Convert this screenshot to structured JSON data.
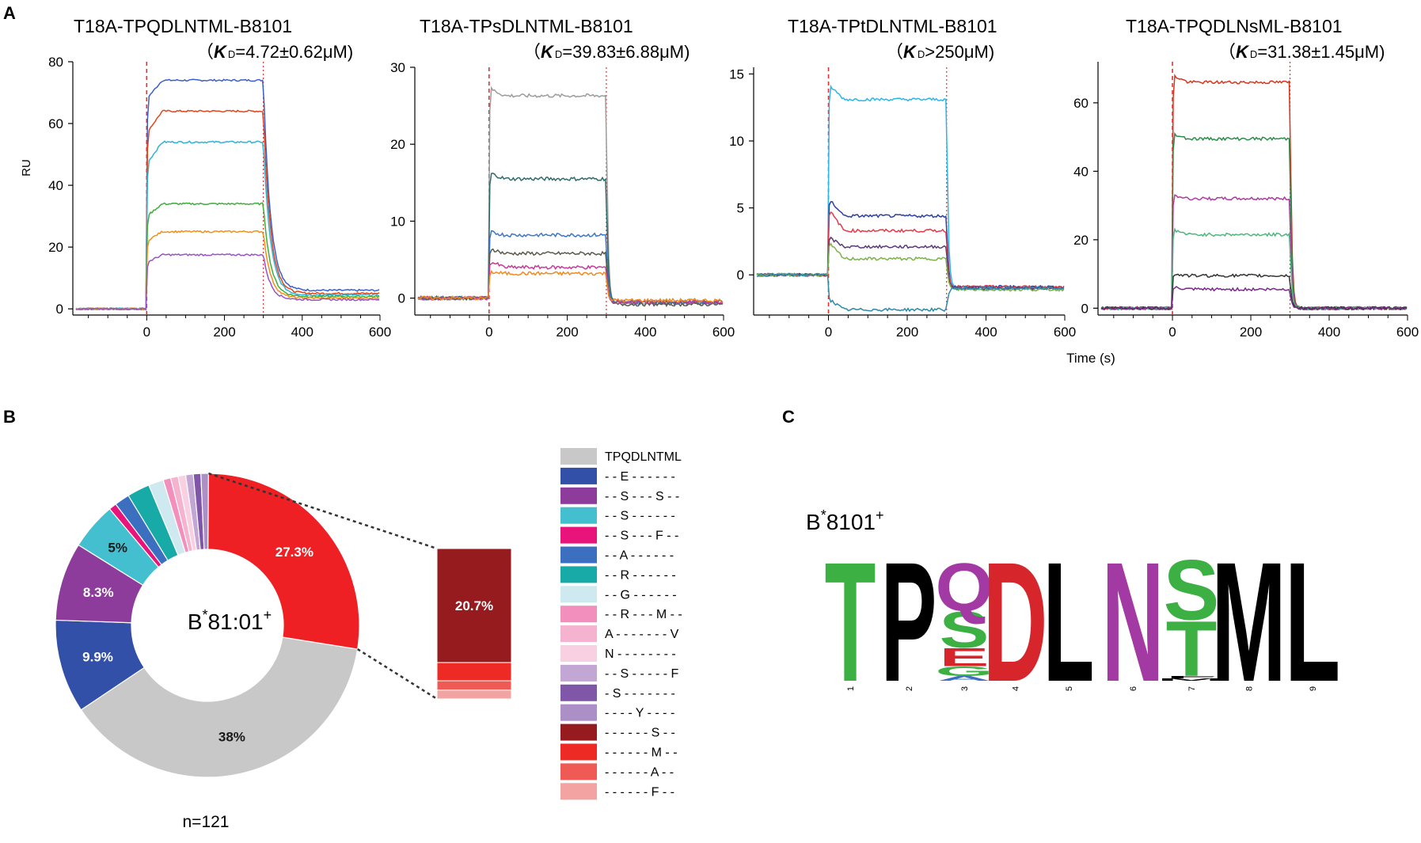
{
  "panels": {
    "A": "A",
    "B": "B",
    "C": "C"
  },
  "spr": {
    "ylabel": "RU",
    "xlabel": "Time (s)",
    "kd_symbol": "K",
    "kd_sub": "D",
    "plots": [
      {
        "title": "T18A-TPQDLNTML-B8101",
        "kd": {
          "open": "（",
          "rest": "=4.72±0.62μM)"
        },
        "xlim": [
          -190,
          600
        ],
        "ylim": [
          -2,
          80
        ],
        "yticks": [
          0,
          20,
          40,
          60,
          80
        ],
        "xticks": [
          0,
          200,
          400,
          600
        ],
        "noise": 0.15,
        "neg_pre": 0,
        "series": [
          {
            "color": "#3a5fcd",
            "plateau": 74,
            "start": 68,
            "tail": 6
          },
          {
            "color": "#e2441b",
            "plateau": 64,
            "start": 57,
            "tail": 5
          },
          {
            "color": "#2db3d6",
            "plateau": 54,
            "start": 47,
            "tail": 4.5
          },
          {
            "color": "#3fae3a",
            "plateau": 34,
            "start": 30,
            "tail": 4
          },
          {
            "color": "#f0901a",
            "plateau": 25,
            "start": 22,
            "tail": 3.5
          },
          {
            "color": "#9a52c7",
            "plateau": 17.5,
            "start": 15,
            "tail": 3
          }
        ]
      },
      {
        "title": "T18A-TPsDLNTML-B8101",
        "kd": {
          "open": "（",
          "rest": "=39.83±6.88μM)"
        },
        "xlim": [
          -190,
          600
        ],
        "ylim": [
          -2.2,
          30
        ],
        "yticks": [
          0,
          10,
          20,
          30
        ],
        "xticks": [
          0,
          200,
          400,
          600
        ],
        "noise": 0.3,
        "neg_pre": 0,
        "series": [
          {
            "color": "#9c9c9c",
            "plateau": 26.3,
            "start": 27.3,
            "tail": -0.6
          },
          {
            "color": "#2e6b6b",
            "plateau": 15.5,
            "start": 16.3,
            "tail": -0.5
          },
          {
            "color": "#3a76c9",
            "plateau": 8.2,
            "start": 8.6,
            "tail": -0.6
          },
          {
            "color": "#5a5a4a",
            "plateau": 5.8,
            "start": 6.5,
            "tail": -0.8
          },
          {
            "color": "#c63a9a",
            "plateau": 4.0,
            "start": 4.8,
            "tail": -0.5
          },
          {
            "color": "#f08a1e",
            "plateau": 3.2,
            "start": 3.4,
            "tail": -0.3
          }
        ]
      },
      {
        "title": "T18A-TPtDLNTML-B8101",
        "kd": {
          "open": "（",
          "rest": ">250μM)"
        },
        "xlim": [
          -190,
          600
        ],
        "ylim": [
          -3,
          15.5
        ],
        "yticks": [
          0,
          5,
          10,
          15
        ],
        "xticks": [
          0,
          200,
          400,
          600
        ],
        "noise": 0.25,
        "neg_pre": 0,
        "series": [
          {
            "color": "#2bb6ea",
            "plateau": 13.1,
            "start": 14.2,
            "tail": -1.0
          },
          {
            "color": "#2c3fa8",
            "plateau": 4.4,
            "start": 5.7,
            "tail": -0.9
          },
          {
            "color": "#e23a4a",
            "plateau": 3.3,
            "start": 4.9,
            "tail": -0.9
          },
          {
            "color": "#5a3a7a",
            "plateau": 2.1,
            "start": 2.8,
            "tail": -1.0
          },
          {
            "color": "#7db14a",
            "plateau": 1.2,
            "start": 2.4,
            "tail": -1.1
          },
          {
            "color": "#2a8aa8",
            "plateau": -2.6,
            "start": -1.8,
            "tail": -1.0
          }
        ]
      },
      {
        "title": "T18A-TPQDLNsML-B8101",
        "kd": {
          "open": "（",
          "rest": "=31.38±1.45μM)"
        },
        "xlim": [
          -190,
          600
        ],
        "ylim": [
          -2,
          72
        ],
        "yticks": [
          0,
          20,
          40,
          60
        ],
        "xticks": [
          0,
          200,
          400,
          600
        ],
        "noise": 0.25,
        "neg_pre": 0,
        "series": [
          {
            "color": "#d9351c",
            "plateau": 66,
            "start": 68,
            "tail": 0
          },
          {
            "color": "#2e8b4a",
            "plateau": 49.5,
            "start": 51,
            "tail": 0
          },
          {
            "color": "#b03aa4",
            "plateau": 32,
            "start": 33,
            "tail": 0
          },
          {
            "color": "#4ab87a",
            "plateau": 21.5,
            "start": 23,
            "tail": 0
          },
          {
            "color": "#333333",
            "plateau": 9.5,
            "start": 10,
            "tail": 0
          },
          {
            "color": "#7a2a8a",
            "plateau": 5.5,
            "start": 6,
            "tail": 0
          }
        ]
      }
    ]
  },
  "chart_data": [
    {
      "type": "pie",
      "title": "B*81:01+",
      "title_base": "B",
      "title_sup": "*",
      "title_main": "81:01",
      "title_sup2": "+",
      "n_label": "n=121",
      "slices": [
        {
          "label": "TPQDLNTML",
          "value": 38,
          "color": "#c8c8c8",
          "data_label": "38%"
        },
        {
          "label": "- - E - - - - - -",
          "value": 9.9,
          "color": "#3350a8",
          "data_label": "9.9%"
        },
        {
          "label": "- - S - - - S - -",
          "value": 8.3,
          "color": "#8e3c9c",
          "data_label": "8.3%"
        },
        {
          "label": "- - S - - - - - -",
          "value": 5.0,
          "color": "#44bfd0",
          "data_label": "5%"
        },
        {
          "label": "- - S - - - F - -",
          "value": 0.8,
          "color": "#e8137b",
          "data_label": ""
        },
        {
          "label": "- - A - - - - - -",
          "value": 1.6,
          "color": "#3c6fc0",
          "data_label": ""
        },
        {
          "label": "- - R - - - - - -",
          "value": 2.4,
          "color": "#17aaa6",
          "data_label": ""
        },
        {
          "label": "- - G - - - - - -",
          "value": 1.6,
          "color": "#cfe9f1",
          "data_label": ""
        },
        {
          "label": "- - R - - - M - -",
          "value": 0.8,
          "color": "#f28fbd",
          "data_label": ""
        },
        {
          "label": "A - - - - - - - V",
          "value": 0.8,
          "color": "#f5b3cf",
          "data_label": ""
        },
        {
          "label": "N - - - - - - - -",
          "value": 0.8,
          "color": "#f8d0e2",
          "data_label": ""
        },
        {
          "label": "- - S - - - - - F",
          "value": 0.8,
          "color": "#c2a6d3",
          "data_label": ""
        },
        {
          "label": "- S - - - - - - -",
          "value": 0.8,
          "color": "#7f56a8",
          "data_label": ""
        },
        {
          "label": "- - - - Y - - - -",
          "value": 0.8,
          "color": "#ac8fc7",
          "data_label": ""
        },
        {
          "label": "- - - - - - S - -",
          "value": 27.3,
          "color": "#ee2024",
          "data_label": "27.3%"
        }
      ],
      "breakdown": {
        "data_label": "20.7%",
        "parts": [
          {
            "label": "- - - - - - S - -",
            "value": 20.7,
            "color": "#951b1e"
          },
          {
            "label": "- - - - - - M - -",
            "value": 3.3,
            "color": "#ee2a24"
          },
          {
            "label": "- - - - - - A - -",
            "value": 1.7,
            "color": "#f05a55"
          },
          {
            "label": "- - - - - - F - -",
            "value": 1.6,
            "color": "#f4a3a3"
          }
        ]
      },
      "legend": [
        {
          "label": "TPQDLNTML",
          "color": "#c8c8c8"
        },
        {
          "label": "- - E - - - - - -",
          "color": "#3350a8"
        },
        {
          "label": "- - S - - - S - -",
          "color": "#8e3c9c"
        },
        {
          "label": "- - S - - - - - -",
          "color": "#44bfd0"
        },
        {
          "label": "- - S - - - F - -",
          "color": "#e8137b"
        },
        {
          "label": "- - A - - - - - -",
          "color": "#3c6fc0"
        },
        {
          "label": "- - R - - - - - -",
          "color": "#17aaa6"
        },
        {
          "label": "- - G - - - - - -",
          "color": "#cfe9f1"
        },
        {
          "label": "- - R - - - M - -",
          "color": "#f28fbd"
        },
        {
          "label": "A - - - - - - - V",
          "color": "#f5b3cf"
        },
        {
          "label": "N - - - - - - - -",
          "color": "#f8d0e2"
        },
        {
          "label": "- - S - - - - - F",
          "color": "#c2a6d3"
        },
        {
          "label": "- S - - - - - - -",
          "color": "#7f56a8"
        },
        {
          "label": "- - - - Y - - - -",
          "color": "#ac8fc7"
        },
        {
          "label": "- - - - - - S - -",
          "color": "#951b1e"
        },
        {
          "label": "- - - - - - M - -",
          "color": "#ee2a24"
        },
        {
          "label": "- - - - - - A - -",
          "color": "#f05a55"
        },
        {
          "label": "- - - - - - F - -",
          "color": "#f4a3a3"
        }
      ]
    }
  ],
  "logo": {
    "title_base": "B",
    "title_sup": "*",
    "title_main": "8101",
    "title_sup2": "+",
    "positions": [
      {
        "pos": "1",
        "letters": [
          {
            "ch": "T",
            "h": 1.0,
            "color": "#3cb043"
          }
        ]
      },
      {
        "pos": "2",
        "letters": [
          {
            "ch": "P",
            "h": 1.0,
            "color": "#000000"
          }
        ]
      },
      {
        "pos": "3",
        "letters": [
          {
            "ch": "Q",
            "h": 0.4,
            "color": "#a33aa3"
          },
          {
            "ch": "S",
            "h": 0.3,
            "color": "#3cb043"
          },
          {
            "ch": "E",
            "h": 0.15,
            "color": "#d7262b"
          },
          {
            "ch": "G",
            "h": 0.08,
            "color": "#3cb043"
          },
          {
            "ch": "A",
            "h": 0.04,
            "color": "#3c6fc0"
          }
        ]
      },
      {
        "pos": "4",
        "letters": [
          {
            "ch": "D",
            "h": 1.0,
            "color": "#d7262b"
          }
        ]
      },
      {
        "pos": "5",
        "letters": [
          {
            "ch": "L",
            "h": 1.0,
            "color": "#000000"
          }
        ]
      },
      {
        "pos": "6",
        "letters": [
          {
            "ch": "N",
            "h": 1.0,
            "color": "#a33aa3"
          }
        ]
      },
      {
        "pos": "7",
        "letters": [
          {
            "ch": "S",
            "h": 0.5,
            "color": "#3cb043"
          },
          {
            "ch": "T",
            "h": 0.46,
            "color": "#3cb043"
          },
          {
            "ch": "M",
            "h": 0.02,
            "color": "#000000"
          },
          {
            "ch": "F",
            "h": 0.02,
            "color": "#000000"
          }
        ]
      },
      {
        "pos": "8",
        "letters": [
          {
            "ch": "M",
            "h": 1.0,
            "color": "#000000"
          }
        ]
      },
      {
        "pos": "9",
        "letters": [
          {
            "ch": "L",
            "h": 1.0,
            "color": "#000000"
          }
        ]
      }
    ]
  }
}
